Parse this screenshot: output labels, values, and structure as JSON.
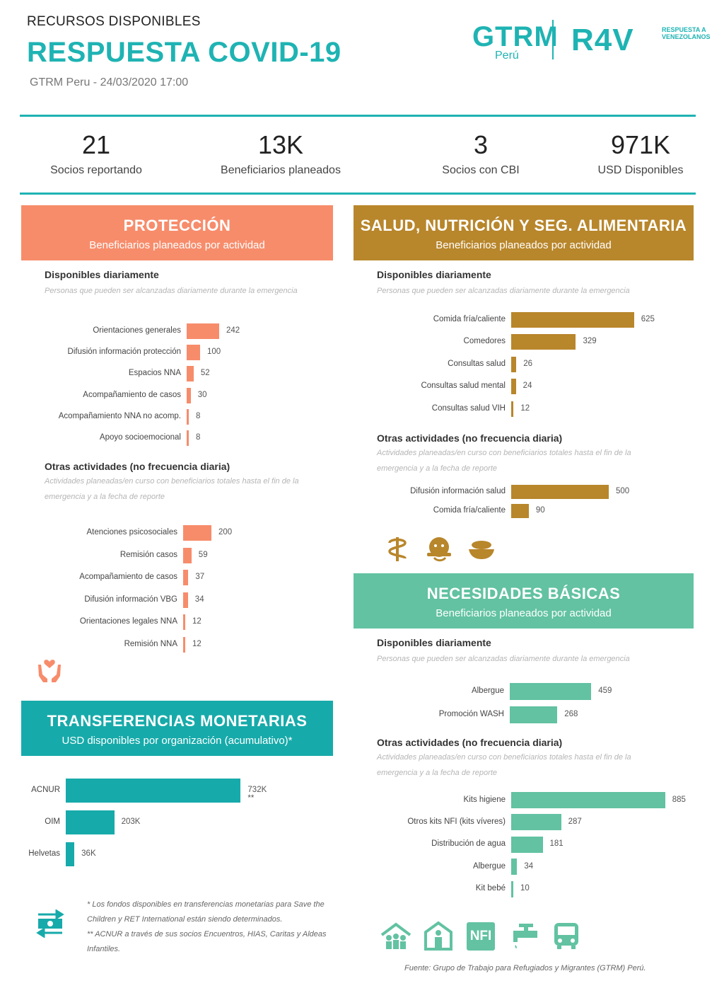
{
  "header": {
    "kicker": "RECURSOS DISPONIBLES",
    "title": "RESPUESTA COVID-19",
    "subtitle": "GTRM Peru - 24/03/2020 17:00",
    "logo_gtrm": "GTRM",
    "logo_gtrm_sub": "Perú",
    "logo_r4v": "R4V",
    "logo_r4v_sub": "RESPUESTA A VENEZOLANOS"
  },
  "kpis": [
    {
      "value": "21",
      "label": "Socios reportando"
    },
    {
      "value": "13K",
      "label": "Beneficiarios planeados"
    },
    {
      "value": "3",
      "label": "Socios con CBI"
    },
    {
      "value": "971K",
      "label": "USD Disponibles"
    }
  ],
  "sections": {
    "proteccion": {
      "title": "PROTECCIÓN",
      "subtitle": "Beneficiarios planeados por actividad",
      "color": "#f78c6b"
    },
    "salud": {
      "title": "SALUD, NUTRICIÓN Y SEG. ALIMENTARIA",
      "subtitle": "Beneficiarios planeados por actividad",
      "color": "#b8862b"
    },
    "basicas": {
      "title": "NECESIDADES BÁSICAS",
      "subtitle": "Beneficiarios planeados por actividad",
      "color": "#62c2a2"
    },
    "transferencias": {
      "title": "TRANSFERENCIAS MONETARIAS",
      "subtitle": "USD disponibles por organización (acumulativo)*",
      "color": "#17aaaa"
    }
  },
  "labels": {
    "daily_title": "Disponibles diariamente",
    "daily_note": "Personas que pueden ser alcanzadas diariamente durante la emergencia",
    "other_title": "Otras actividades (no frecuencia diaria)",
    "other_note": "Actividades planeadas/en curso con beneficiarios totales hasta el fin de la emergencia y a la fecha de reporte"
  },
  "icons": {
    "proteccion": [
      "hands-heart-icon"
    ],
    "salud": [
      "health-caduceus-icon",
      "nutrition-baby-icon",
      "food-bowl-icon"
    ],
    "transferencias": [
      "cash-transfer-icon"
    ],
    "basicas": [
      "shelter-people-icon",
      "shelter-icon",
      "nfi-icon",
      "water-tap-icon",
      "transport-bus-icon"
    ],
    "nfi_text": "NFI"
  },
  "footnotes": {
    "transfer_note_1": "* Los fondos disponibles en transferencias monetarias para Save the Children y RET International están siendo determinados.",
    "transfer_note_2": "** ACNUR a través de sus socios Encuentros, HIAS, Caritas y Aldeas Infantiles.",
    "source": "Fuente: Grupo de Trabajo para Refugiados y Migrantes (GTRM) Perú."
  },
  "chart_data": [
    {
      "id": "prot_daily",
      "type": "bar",
      "color": "#f78c6b",
      "categories": [
        "Orientaciones generales",
        "Difusión información protección",
        "Espacios NNA",
        "Acompañamiento de casos",
        "Acompañamiento NNA no acomp.",
        "Apoyo socioemocional"
      ],
      "values": [
        242,
        100,
        52,
        30,
        8,
        8
      ],
      "value_labels": [
        "242",
        "100",
        "52",
        "30",
        "8",
        "8"
      ]
    },
    {
      "id": "prot_other",
      "type": "bar",
      "color": "#f78c6b",
      "categories": [
        "Atenciones psicosociales",
        "Remisión casos",
        "Acompañamiento de casos",
        "Difusión información VBG",
        "Orientaciones legales NNA",
        "Remisión NNA"
      ],
      "values": [
        200,
        59,
        37,
        34,
        12,
        12
      ],
      "value_labels": [
        "200",
        "59",
        "37",
        "34",
        "12",
        "12"
      ]
    },
    {
      "id": "salud_daily",
      "type": "bar",
      "color": "#b8862b",
      "categories": [
        "Comida fría/caliente",
        "Comedores",
        "Consultas salud",
        "Consultas salud mental",
        "Consultas salud VIH"
      ],
      "values": [
        625,
        329,
        26,
        24,
        12
      ],
      "value_labels": [
        "625",
        "329",
        "26",
        "24",
        "12"
      ]
    },
    {
      "id": "salud_other",
      "type": "bar",
      "color": "#b8862b",
      "categories": [
        "Difusión información salud",
        "Comida fría/caliente"
      ],
      "values": [
        500,
        90
      ],
      "value_labels": [
        "500",
        "90"
      ]
    },
    {
      "id": "basicas_daily",
      "type": "bar",
      "color": "#62c2a2",
      "categories": [
        "Albergue",
        "Promoción WASH"
      ],
      "values": [
        459,
        268
      ],
      "value_labels": [
        "459",
        "268"
      ]
    },
    {
      "id": "basicas_other",
      "type": "bar",
      "color": "#62c2a2",
      "categories": [
        "Kits higiene",
        "Otros kits NFI (kits víveres)",
        "Distribución de agua",
        "Albergue",
        "Kit bebé"
      ],
      "values": [
        885,
        287,
        181,
        34,
        10
      ],
      "value_labels": [
        "885",
        "287",
        "181",
        "34",
        "10"
      ]
    },
    {
      "id": "transfer",
      "type": "bar",
      "color": "#17aaaa",
      "categories": [
        "ACNUR",
        "OIM",
        "Helvetas"
      ],
      "values": [
        732,
        203,
        36
      ],
      "value_labels": [
        "732K **",
        "203K",
        "36K"
      ]
    }
  ]
}
